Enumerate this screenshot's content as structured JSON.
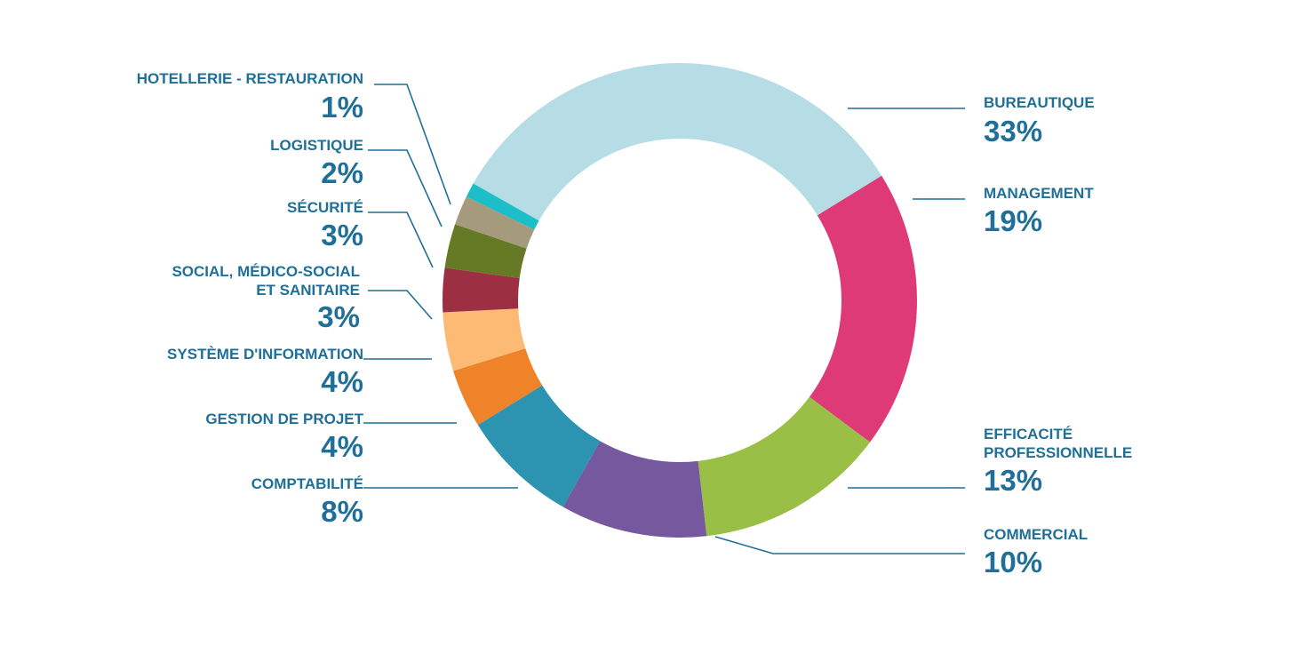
{
  "chart_data": {
    "type": "pie",
    "style": "donut",
    "slices": [
      {
        "label_lines": [
          "BUREAUTIQUE"
        ],
        "pct_label": "33%",
        "value": 33,
        "color": "#b6dce5"
      },
      {
        "label_lines": [
          "MANAGEMENT"
        ],
        "pct_label": "19%",
        "value": 19,
        "color": "#dd3a77"
      },
      {
        "label_lines": [
          "EFFICACITÉ",
          "PROFESSIONNELLE"
        ],
        "pct_label": "13%",
        "value": 13,
        "color": "#9abf47"
      },
      {
        "label_lines": [
          "COMMERCIAL"
        ],
        "pct_label": "10%",
        "value": 10,
        "color": "#75589e"
      },
      {
        "label_lines": [
          "COMPTABILITÉ"
        ],
        "pct_label": "8%",
        "value": 8,
        "color": "#2c93b1"
      },
      {
        "label_lines": [
          "GESTION DE PROJET"
        ],
        "pct_label": "4%",
        "value": 4,
        "color": "#ee8329"
      },
      {
        "label_lines": [
          "SYSTÈME D'INFORMATION"
        ],
        "pct_label": "4%",
        "value": 4,
        "color": "#fdba74"
      },
      {
        "label_lines": [
          "SOCIAL, MÉDICO-SOCIAL",
          "ET SANITAIRE"
        ],
        "pct_label": "3%",
        "value": 3,
        "color": "#9c2f42"
      },
      {
        "label_lines": [
          "SÉCURITÉ"
        ],
        "pct_label": "3%",
        "value": 3,
        "color": "#667a26"
      },
      {
        "label_lines": [
          "LOGISTIQUE"
        ],
        "pct_label": "2%",
        "value": 2,
        "color": "#a69a7c"
      },
      {
        "label_lines": [
          "HOTELLERIE - RESTAURATION"
        ],
        "pct_label": "1%",
        "value": 1,
        "color": "#1cbec9"
      }
    ],
    "colors": {
      "text": "#1f6f98",
      "background": "#ffffff"
    }
  }
}
